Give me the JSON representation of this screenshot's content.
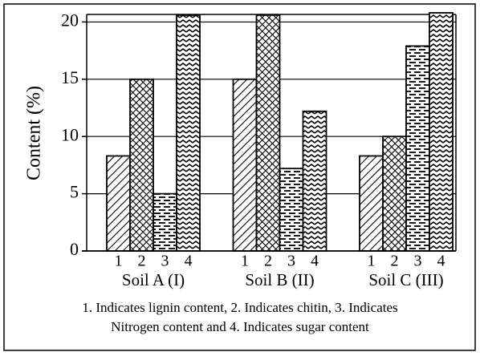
{
  "chart_data": {
    "type": "bar",
    "ylabel": "Content (%)",
    "categories": [
      "Soil A (I)",
      "Soil B (II)",
      "Soil C (III)"
    ],
    "series": [
      {
        "name": "1",
        "color": "#000000",
        "pattern": "diagonal",
        "values": [
          8.3,
          15,
          8.3
        ]
      },
      {
        "name": "2",
        "color": "#000000",
        "pattern": "crosshatch",
        "values": [
          15,
          20.6,
          10
        ]
      },
      {
        "name": "3",
        "color": "#000000",
        "pattern": "brick",
        "values": [
          5,
          7.2,
          17.9
        ]
      },
      {
        "name": "4",
        "color": "#000000",
        "pattern": "zigzag",
        "values": [
          20.6,
          12.2,
          20.8
        ]
      }
    ],
    "ylim": [
      0,
      20.8
    ],
    "yticks": [
      0,
      5,
      10,
      15,
      20
    ],
    "grid": true,
    "note": [
      "1. Indicates lignin content, 2. Indicates chitin, 3. Indicates",
      "Nitrogen content and 4. Indicates sugar content"
    ]
  }
}
